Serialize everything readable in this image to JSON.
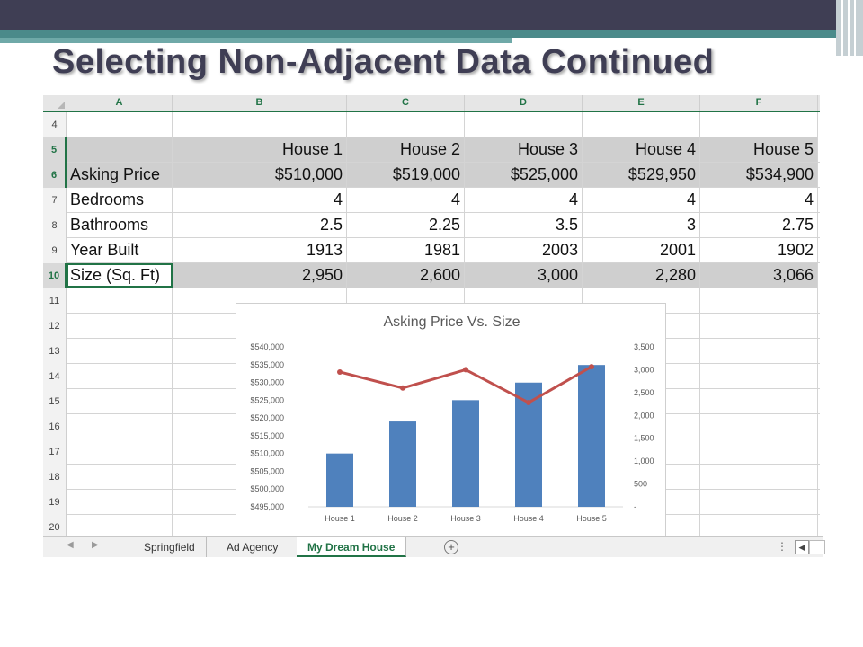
{
  "slide": {
    "title": "Selecting Non-Adjacent Data Continued"
  },
  "sheet": {
    "columns": [
      "A",
      "B",
      "C",
      "D",
      "E",
      "F"
    ],
    "rows": [
      {
        "num": "4",
        "cells": [
          "",
          "",
          "",
          "",
          "",
          ""
        ]
      },
      {
        "num": "5",
        "cells": [
          "",
          "House 1",
          "House 2",
          "House 3",
          "House 4",
          "House 5"
        ]
      },
      {
        "num": "6",
        "cells": [
          "Asking Price",
          "$510,000",
          "$519,000",
          "$525,000",
          "$529,950",
          "$534,900"
        ]
      },
      {
        "num": "7",
        "cells": [
          "Bedrooms",
          "4",
          "4",
          "4",
          "4",
          "4"
        ]
      },
      {
        "num": "8",
        "cells": [
          "Bathrooms",
          "2.5",
          "2.25",
          "3.5",
          "3",
          "2.75"
        ]
      },
      {
        "num": "9",
        "cells": [
          "Year Built",
          "1913",
          "1981",
          "2003",
          "2001",
          "1902"
        ]
      },
      {
        "num": "10",
        "cells": [
          "Size (Sq. Ft)",
          "2,950",
          "2,600",
          "3,000",
          "2,280",
          "3,066"
        ]
      },
      {
        "num": "11",
        "cells": [
          "",
          "",
          "",
          "",
          "",
          ""
        ]
      },
      {
        "num": "12",
        "cells": [
          "",
          "",
          "",
          "",
          "",
          ""
        ]
      },
      {
        "num": "13",
        "cells": [
          "",
          "",
          "",
          "",
          "",
          ""
        ]
      },
      {
        "num": "14",
        "cells": [
          "",
          "",
          "",
          "",
          "",
          ""
        ]
      },
      {
        "num": "15",
        "cells": [
          "",
          "",
          "",
          "",
          "",
          ""
        ]
      },
      {
        "num": "16",
        "cells": [
          "",
          "",
          "",
          "",
          "",
          ""
        ]
      },
      {
        "num": "17",
        "cells": [
          "",
          "",
          "",
          "",
          "",
          ""
        ]
      },
      {
        "num": "18",
        "cells": [
          "",
          "",
          "",
          "",
          "",
          ""
        ]
      },
      {
        "num": "19",
        "cells": [
          "",
          "",
          "",
          "",
          "",
          ""
        ]
      },
      {
        "num": "20",
        "cells": [
          "",
          "",
          "",
          "",
          "",
          ""
        ]
      }
    ],
    "selected_rows": [
      "5",
      "6",
      "10"
    ],
    "active_cell": "A10",
    "colors": {
      "accent": "#217346",
      "selection": "#cfcfcf",
      "bar": "#4f81bd",
      "line": "#c0504d"
    }
  },
  "tabs": {
    "items": [
      "Springfield",
      "Ad Agency",
      "My Dream House"
    ],
    "active": "My Dream House",
    "add_icon": "plus-circle-icon",
    "more_icon": "vertical-ellipsis-icon"
  },
  "chart_data": {
    "type": "bar",
    "title": "Asking Price Vs. Size",
    "categories": [
      "House 1",
      "House 2",
      "House 3",
      "House 4",
      "House 5"
    ],
    "series": [
      {
        "type": "bar",
        "axis": "left",
        "values": [
          510000,
          519000,
          525000,
          529950,
          534900
        ]
      },
      {
        "type": "line",
        "axis": "right",
        "values": [
          2950,
          2600,
          3000,
          2280,
          3066
        ]
      }
    ],
    "y_left": {
      "ylim": [
        495000,
        540000
      ],
      "ticks": [
        "$495,000",
        "$500,000",
        "$505,000",
        "$510,000",
        "$515,000",
        "$520,000",
        "$525,000",
        "$530,000",
        "$535,000",
        "$540,000"
      ]
    },
    "y_right": {
      "ylim": [
        0,
        3500
      ],
      "ticks": [
        "-",
        "500",
        "1,000",
        "1,500",
        "2,000",
        "2,500",
        "3,000",
        "3,500"
      ]
    },
    "grid": false,
    "legend": "none"
  }
}
